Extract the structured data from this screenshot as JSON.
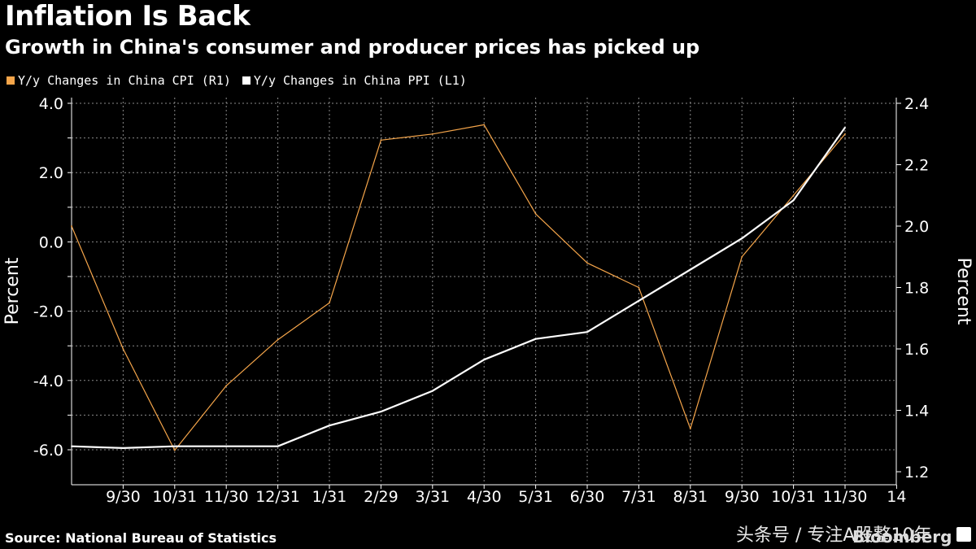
{
  "header": {
    "title": "Inflation Is Back",
    "subtitle": "Growth in China's consumer and producer prices has picked up"
  },
  "footer": {
    "source": "Source: National Bureau of Statistics",
    "watermark": "头条号 / 专注A股整10年",
    "logo": "Bloomberg"
  },
  "colors": {
    "cpi": "#f5a54a",
    "ppi": "#ffffff",
    "grid": "#8a8a8a",
    "background": "#000000"
  },
  "chart_data": {
    "type": "line",
    "title": "Inflation Is Back",
    "subtitle": "Growth in China's consumer and producer prices has picked up",
    "x_labels": [
      "9/30",
      "10/31",
      "11/30",
      "12/31",
      "1/31",
      "2/29",
      "3/31",
      "4/30",
      "5/31",
      "6/30",
      "7/31",
      "8/31",
      "9/30",
      "10/31",
      "11/30",
      "14"
    ],
    "ylabel_left": "Percent",
    "ylabel_right": "Percent",
    "ylim_left": [
      -6.8,
      4.0
    ],
    "ylim_right": [
      1.2,
      2.4
    ],
    "left_ticks": [
      "4.0",
      "2.0",
      "0.0",
      "-2.0",
      "-4.0",
      "-6.0"
    ],
    "right_ticks": [
      "2.4",
      "2.2",
      "2.0",
      "1.8",
      "1.6",
      "1.4",
      "1.2"
    ],
    "grid": true,
    "series": [
      {
        "name": "Y/y Changes in China CPI (R1)",
        "axis": "right",
        "x": [
          "8/31",
          "9/30",
          "10/31",
          "11/30",
          "12/31",
          "1/31",
          "2/29",
          "3/31",
          "4/30",
          "5/31",
          "6/30",
          "7/31",
          "8/31",
          "9/30",
          "10/31",
          "11/30"
        ],
        "values": [
          2.0,
          1.6,
          1.27,
          1.48,
          1.63,
          1.75,
          2.28,
          2.3,
          2.33,
          2.04,
          1.88,
          1.8,
          1.34,
          1.9,
          2.1,
          2.3
        ]
      },
      {
        "name": "Y/y Changes in China PPI (L1)",
        "axis": "left",
        "x": [
          "8/31",
          "9/30",
          "10/31",
          "11/30",
          "12/31",
          "1/31",
          "2/29",
          "3/31",
          "4/30",
          "5/31",
          "6/30",
          "7/31",
          "8/31",
          "9/30",
          "10/31",
          "11/30"
        ],
        "values": [
          -5.9,
          -5.95,
          -5.9,
          -5.9,
          -5.9,
          -5.3,
          -4.9,
          -4.3,
          -3.4,
          -2.8,
          -2.6,
          -1.7,
          -0.8,
          0.1,
          1.2,
          3.3
        ]
      }
    ]
  }
}
